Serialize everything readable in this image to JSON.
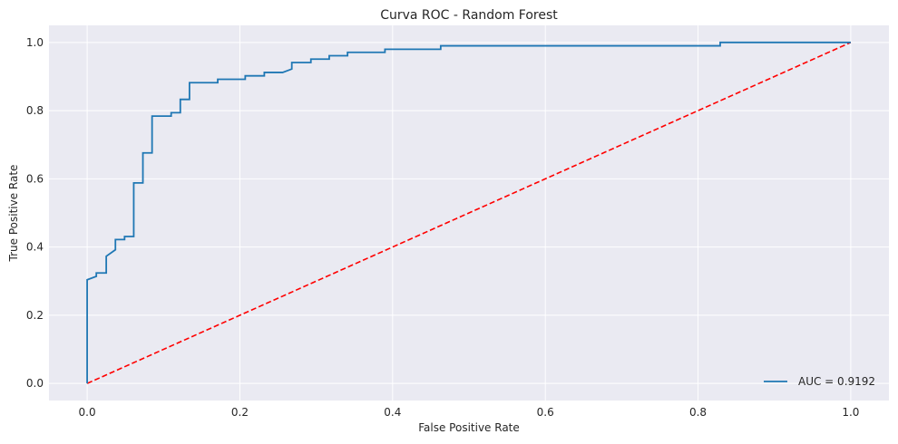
{
  "chart_data": {
    "type": "line",
    "title": "Curva ROC - Random Forest",
    "xlabel": "False Positive Rate",
    "ylabel": "True Positive Rate",
    "xlim": [
      -0.05,
      1.05
    ],
    "ylim": [
      -0.05,
      1.05
    ],
    "xticks": [
      0.0,
      0.2,
      0.4,
      0.6,
      0.8,
      1.0
    ],
    "yticks": [
      0.0,
      0.2,
      0.4,
      0.6,
      0.8,
      1.0
    ],
    "xtick_labels": [
      "0.0",
      "0.2",
      "0.4",
      "0.6",
      "0.8",
      "1.0"
    ],
    "ytick_labels": [
      "0.0",
      "0.2",
      "0.4",
      "0.6",
      "0.8",
      "1.0"
    ],
    "grid": true,
    "legend_position": "lower-right",
    "series": [
      {
        "name": "AUC = 0.9192",
        "color": "#1f77b4",
        "style": "solid",
        "x": [
          0.0,
          0.0,
          0.012,
          0.012,
          0.025,
          0.025,
          0.037,
          0.037,
          0.049,
          0.049,
          0.061,
          0.061,
          0.073,
          0.073,
          0.085,
          0.085,
          0.11,
          0.11,
          0.122,
          0.122,
          0.134,
          0.134,
          0.171,
          0.171,
          0.207,
          0.207,
          0.232,
          0.232,
          0.256,
          0.268,
          0.268,
          0.293,
          0.293,
          0.317,
          0.317,
          0.341,
          0.341,
          0.39,
          0.39,
          0.463,
          0.463,
          0.829,
          0.829,
          1.0
        ],
        "y": [
          0.0,
          0.304,
          0.314,
          0.324,
          0.324,
          0.373,
          0.392,
          0.422,
          0.422,
          0.431,
          0.431,
          0.588,
          0.588,
          0.676,
          0.676,
          0.784,
          0.784,
          0.794,
          0.794,
          0.833,
          0.833,
          0.882,
          0.882,
          0.892,
          0.892,
          0.902,
          0.902,
          0.912,
          0.912,
          0.922,
          0.941,
          0.941,
          0.951,
          0.951,
          0.961,
          0.961,
          0.971,
          0.971,
          0.98,
          0.98,
          0.99,
          0.99,
          1.0,
          1.0
        ]
      },
      {
        "name": "",
        "color": "#ff0000",
        "style": "dashed",
        "x": [
          0.0,
          1.0
        ],
        "y": [
          0.0,
          1.0
        ]
      }
    ]
  },
  "colors": {
    "plot_background": "#eaeaf2",
    "grid": "#ffffff",
    "roc_line": "#1f77b4",
    "reference_line": "#ff0000"
  }
}
